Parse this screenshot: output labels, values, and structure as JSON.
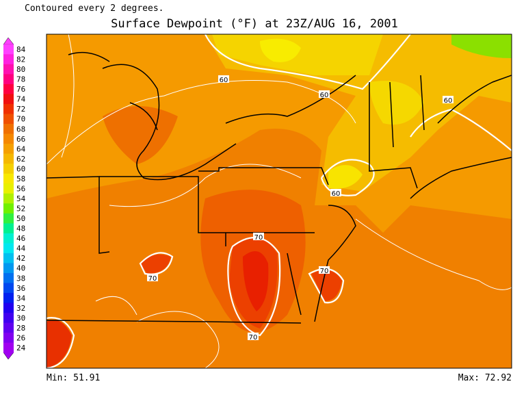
{
  "header": {
    "note": "Contoured every 2 degrees.",
    "title": "Surface Dewpoint (°F) at 23Z/AUG 16, 2001"
  },
  "legend": {
    "labels": [
      84,
      82,
      80,
      78,
      76,
      74,
      72,
      70,
      68,
      66,
      64,
      62,
      60,
      58,
      56,
      54,
      52,
      50,
      48,
      46,
      44,
      42,
      40,
      38,
      36,
      34,
      32,
      30,
      28,
      26,
      24
    ],
    "colors": [
      "#ff40ff",
      "#ff20e0",
      "#ff10b0",
      "#ff0080",
      "#ff0040",
      "#f01010",
      "#f03000",
      "#f05000",
      "#f07000",
      "#f58800",
      "#f5a000",
      "#f5b800",
      "#f5d000",
      "#f8e800",
      "#e8f000",
      "#b0f000",
      "#70f000",
      "#30f040",
      "#00f090",
      "#00f0d0",
      "#00e8f0",
      "#00c0f0",
      "#0098f0",
      "#0070f0",
      "#0048f0",
      "#0020f0",
      "#2000f0",
      "#4000f0",
      "#6000f0",
      "#8000f0",
      "#a000f0"
    ]
  },
  "map": {
    "contour_labels": [
      "60",
      "60",
      "60",
      "60",
      "70",
      "70",
      "70",
      "70"
    ]
  },
  "footer": {
    "min": "Min: 51.91",
    "max": "Max: 72.92"
  }
}
